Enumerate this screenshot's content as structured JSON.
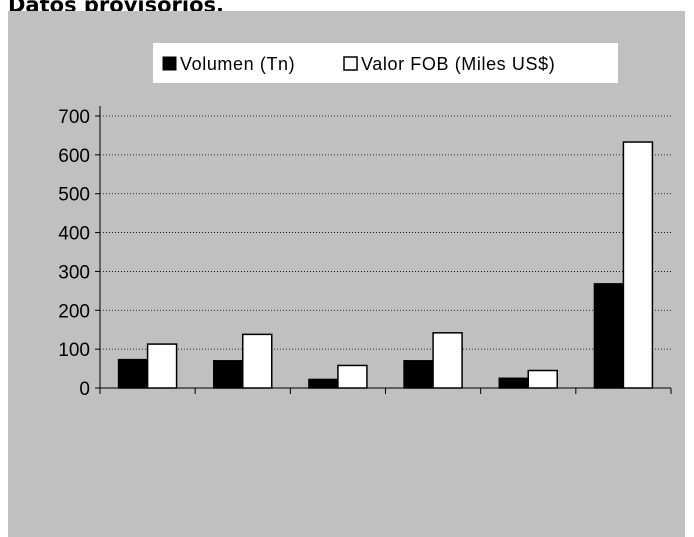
{
  "page": {
    "title": "Datos provisorios."
  },
  "chart_data": {
    "type": "bar",
    "title": "",
    "xlabel": "",
    "ylabel": "",
    "categories": [
      "",
      "",
      "",
      "",
      "",
      ""
    ],
    "series": [
      {
        "name": "Volumen (Tn)",
        "color": "#000000",
        "values": [
          73,
          70,
          22,
          70,
          25,
          268
        ]
      },
      {
        "name": "Valor FOB (Miles US$)",
        "color": "#ffffff",
        "values": [
          113,
          138,
          58,
          142,
          45,
          633
        ]
      }
    ],
    "ylim": [
      0,
      700
    ],
    "yticks": [
      0,
      100,
      200,
      300,
      400,
      500,
      600,
      700
    ],
    "grid": true,
    "legend_position": "top-right",
    "background_color": "#c0c0c0"
  }
}
